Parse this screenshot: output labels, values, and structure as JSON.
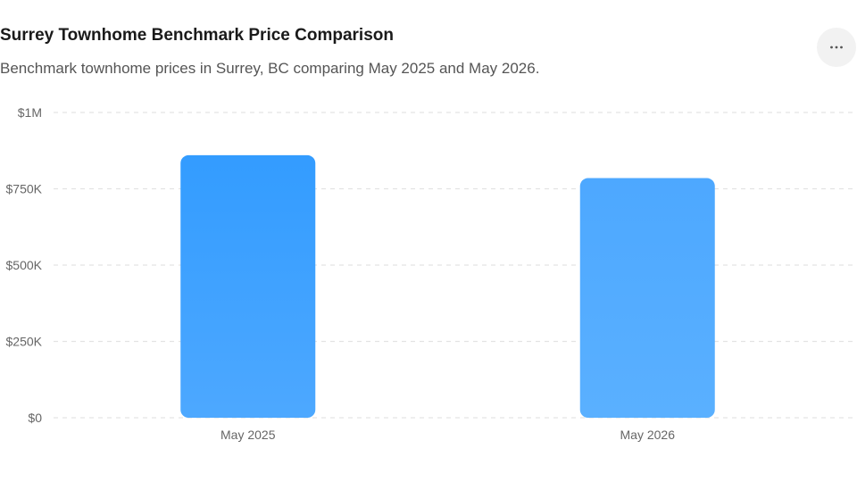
{
  "header": {
    "title": "Surrey Townhome Benchmark Price Comparison",
    "subtitle": "Benchmark townhome prices in Surrey, BC comparing May 2025 and May 2026.",
    "menu_icon": "more-horizontal-icon"
  },
  "colors": {
    "bar_top": "#339CFF",
    "bar_bottom": "#4DA8FF",
    "bar2_top": "#4DA8FF",
    "bar2_bottom": "#5AB0FF",
    "grid": "#e3e3e3",
    "tick_text": "#666666"
  },
  "chart_data": {
    "type": "bar",
    "title": "Surrey Townhome Benchmark Price Comparison",
    "subtitle": "Benchmark townhome prices in Surrey, BC comparing May 2025 and May 2026.",
    "categories": [
      "May 2025",
      "May 2026"
    ],
    "values": [
      860000,
      785000
    ],
    "xlabel": "",
    "ylabel": "",
    "ylim": [
      0,
      1000000
    ],
    "yticks": [
      0,
      250000,
      500000,
      750000,
      1000000
    ],
    "ytick_labels": [
      "$0",
      "$250K",
      "$500K",
      "$750K",
      "$1M"
    ],
    "grid": true,
    "legend": "none"
  }
}
